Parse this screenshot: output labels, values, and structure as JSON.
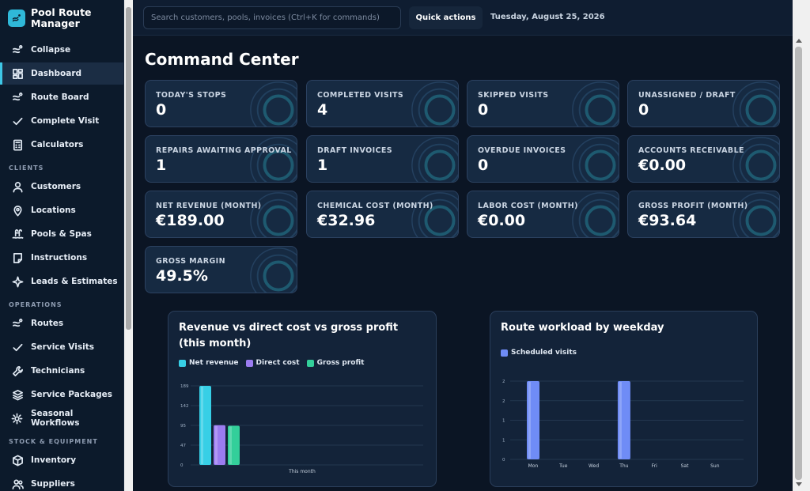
{
  "app": {
    "title": "Pool Route Manager"
  },
  "sidebar": {
    "items_top": [
      {
        "label": "Collapse",
        "icon": "route-icon"
      },
      {
        "label": "Dashboard",
        "icon": "dashboard-icon",
        "active": true
      },
      {
        "label": "Route Board",
        "icon": "route-icon"
      },
      {
        "label": "Complete Visit",
        "icon": "check-icon"
      },
      {
        "label": "Calculators",
        "icon": "calculator-icon"
      }
    ],
    "sections": [
      {
        "label": "CLIENTS",
        "items": [
          {
            "label": "Customers",
            "icon": "user-icon"
          },
          {
            "label": "Locations",
            "icon": "map-pin-icon"
          },
          {
            "label": "Pools & Spas",
            "icon": "pool-ladder-icon"
          },
          {
            "label": "Instructions",
            "icon": "note-icon"
          },
          {
            "label": "Leads & Estimates",
            "icon": "sparkle-icon"
          }
        ]
      },
      {
        "label": "OPERATIONS",
        "items": [
          {
            "label": "Routes",
            "icon": "route-icon"
          },
          {
            "label": "Service Visits",
            "icon": "check-icon"
          },
          {
            "label": "Technicians",
            "icon": "wrench-icon"
          },
          {
            "label": "Service Packages",
            "icon": "layers-icon"
          },
          {
            "label": "Seasonal Workflows",
            "icon": "sun-icon"
          }
        ]
      },
      {
        "label": "STOCK & EQUIPMENT",
        "items": [
          {
            "label": "Inventory",
            "icon": "box-icon"
          },
          {
            "label": "Suppliers",
            "icon": "users-icon"
          }
        ]
      }
    ]
  },
  "topbar": {
    "search_placeholder": "Search customers, pools, invoices (Ctrl+K for commands)",
    "quick_actions": "Quick actions",
    "date": "Tuesday, August 25, 2026"
  },
  "page": {
    "title": "Command Center"
  },
  "kpis": [
    {
      "label": "TODAY'S STOPS",
      "value": "0"
    },
    {
      "label": "COMPLETED VISITS",
      "value": "4"
    },
    {
      "label": "SKIPPED VISITS",
      "value": "0"
    },
    {
      "label": "UNASSIGNED / DRAFT",
      "value": "0"
    },
    {
      "label": "REPAIRS AWAITING APPROVAL",
      "value": "1"
    },
    {
      "label": "DRAFT INVOICES",
      "value": "1"
    },
    {
      "label": "OVERDUE INVOICES",
      "value": "0"
    },
    {
      "label": "ACCOUNTS RECEIVABLE",
      "value": "€0.00"
    },
    {
      "label": "NET REVENUE (MONTH)",
      "value": "€189.00"
    },
    {
      "label": "CHEMICAL COST (MONTH)",
      "value": "€32.96"
    },
    {
      "label": "LABOR COST (MONTH)",
      "value": "€0.00"
    },
    {
      "label": "GROSS PROFIT (MONTH)",
      "value": "€93.64"
    },
    {
      "label": "GROSS MARGIN",
      "value": "49.5%"
    }
  ],
  "colors": {
    "accent": "#3ec7e6",
    "net_revenue": "#37cfe6",
    "direct_cost": "#9b7cf0",
    "gross_profit": "#33cf9a",
    "scheduled": "#6f8cf6"
  },
  "chart_data": [
    {
      "type": "bar",
      "title": "Revenue vs direct cost vs gross profit (this month)",
      "categories": [
        "This month"
      ],
      "series": [
        {
          "name": "Net revenue",
          "values": [
            189
          ]
        },
        {
          "name": "Direct cost",
          "values": [
            95
          ]
        },
        {
          "name": "Gross profit",
          "values": [
            93.64
          ]
        }
      ],
      "yticks": [
        "0",
        "47",
        "95",
        "142",
        "189"
      ],
      "ylim": [
        0,
        189
      ],
      "legend": "top-left",
      "grid": true
    },
    {
      "type": "bar",
      "title": "Route workload by weekday",
      "categories": [
        "Mon",
        "Tue",
        "Wed",
        "Thu",
        "Fri",
        "Sat",
        "Sun"
      ],
      "series": [
        {
          "name": "Scheduled visits",
          "values": [
            2,
            0,
            0,
            2,
            0,
            0,
            0
          ]
        }
      ],
      "yticks": [
        "0",
        "1",
        "1",
        "2",
        "2"
      ],
      "ylim": [
        0,
        2
      ],
      "legend": "top-left",
      "grid": true
    }
  ]
}
